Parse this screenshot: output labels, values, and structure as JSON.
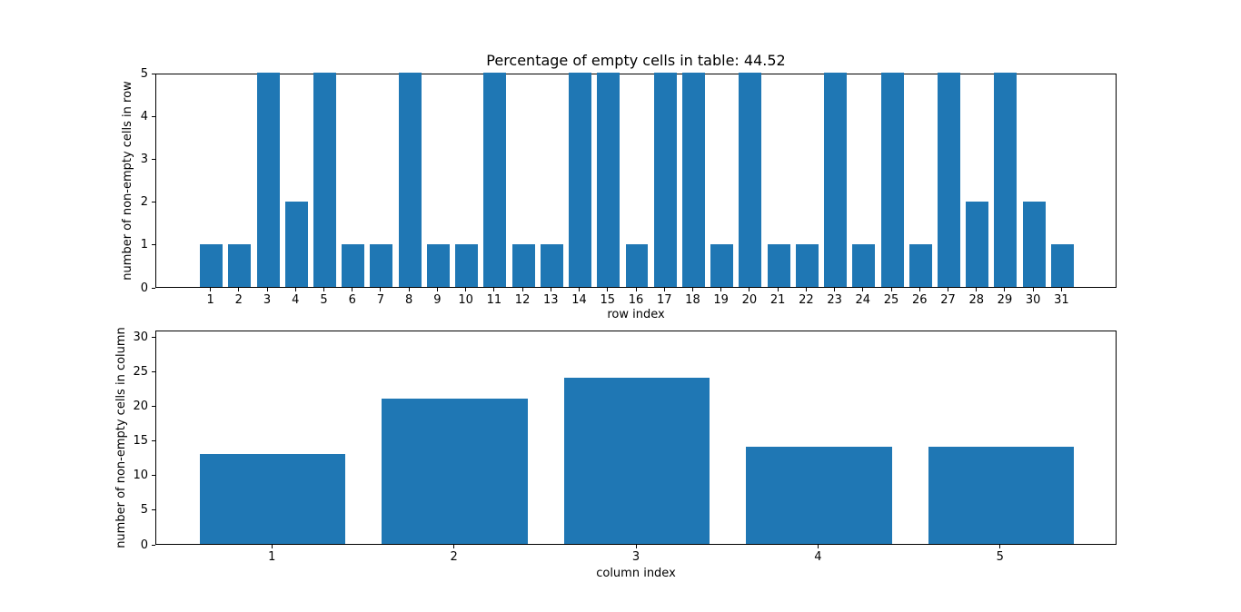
{
  "figure": {
    "background": "#ffffff",
    "bar_color": "#1f77b4",
    "text_color": "#000000",
    "spine_color": "#000000"
  },
  "chart_data": [
    {
      "type": "bar",
      "title": "Percentage of empty cells in table: 44.52",
      "xlabel": "row index",
      "ylabel": "number of non-empty cells in row",
      "categories": [
        1,
        2,
        3,
        4,
        5,
        6,
        7,
        8,
        9,
        10,
        11,
        12,
        13,
        14,
        15,
        16,
        17,
        18,
        19,
        20,
        21,
        22,
        23,
        24,
        25,
        26,
        27,
        28,
        29,
        30,
        31
      ],
      "values": [
        1,
        1,
        5,
        2,
        5,
        1,
        1,
        5,
        1,
        1,
        5,
        1,
        1,
        5,
        5,
        1,
        5,
        5,
        1,
        5,
        1,
        1,
        5,
        1,
        5,
        1,
        5,
        2,
        5,
        2,
        1
      ],
      "ylim": [
        0,
        5
      ],
      "yticks": [
        0,
        1,
        2,
        3,
        4,
        5
      ],
      "grid": false,
      "legend": false
    },
    {
      "type": "bar",
      "title": "",
      "xlabel": "column index",
      "ylabel": "number of non-empty cells in column",
      "categories": [
        1,
        2,
        3,
        4,
        5
      ],
      "values": [
        13,
        21,
        24,
        14,
        14
      ],
      "ylim": [
        0,
        31
      ],
      "yticks": [
        0,
        5,
        10,
        15,
        20,
        25,
        30
      ],
      "grid": false,
      "legend": false
    }
  ]
}
